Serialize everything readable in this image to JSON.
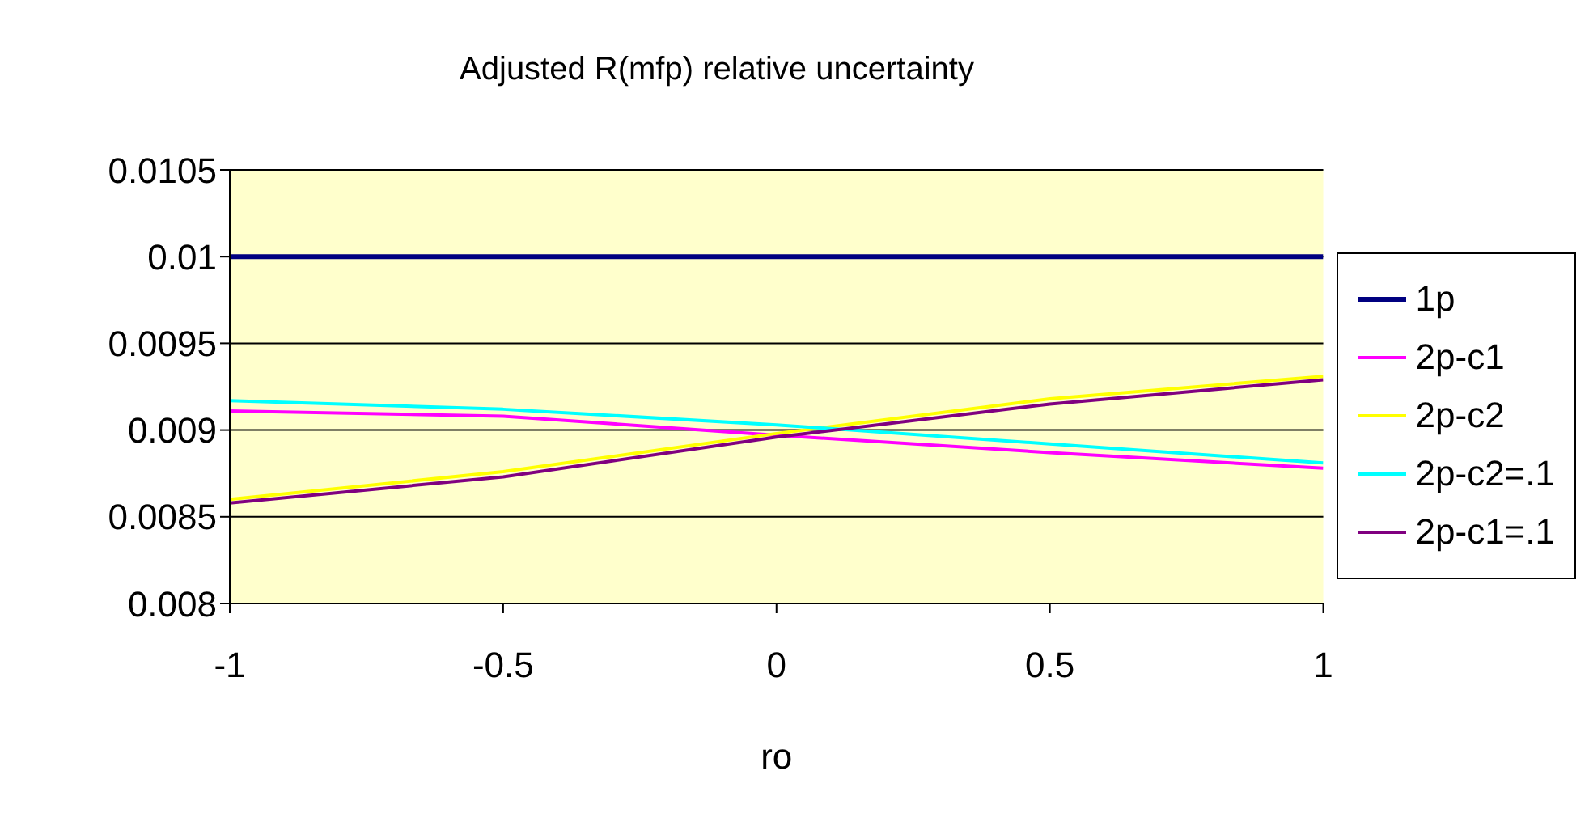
{
  "chart_data": {
    "type": "line",
    "title": "Adjusted R(mfp) relative uncertainty",
    "xlabel": "ro",
    "x": [
      -1,
      -0.5,
      0,
      0.5,
      1
    ],
    "series": [
      {
        "name": "1p",
        "color": "#000080",
        "values": [
          0.01,
          0.01,
          0.01,
          0.01,
          0.01
        ]
      },
      {
        "name": "2p-c1",
        "color": "#ff00ff",
        "values": [
          0.00911,
          0.00908,
          0.00897,
          0.00887,
          0.00878
        ]
      },
      {
        "name": "2p-c2",
        "color": "#ffff00",
        "values": [
          0.0086,
          0.00876,
          0.00898,
          0.00918,
          0.00931
        ]
      },
      {
        "name": "2p-c2=.1",
        "color": "#00ffff",
        "values": [
          0.00917,
          0.00912,
          0.00903,
          0.00892,
          0.00881
        ]
      },
      {
        "name": "2p-c1=.1",
        "color": "#800080",
        "values": [
          0.00858,
          0.00873,
          0.00896,
          0.00915,
          0.00929
        ]
      }
    ],
    "xlim": [
      -1,
      1
    ],
    "xticks": [
      -1,
      -0.5,
      0,
      0.5,
      1
    ],
    "ylim": [
      0.008,
      0.0105
    ],
    "yticks": [
      0.008,
      0.0085,
      0.009,
      0.0095,
      0.01,
      0.0105
    ],
    "grid": "y",
    "legend": "right",
    "marker": "none",
    "line_style": "solid"
  }
}
